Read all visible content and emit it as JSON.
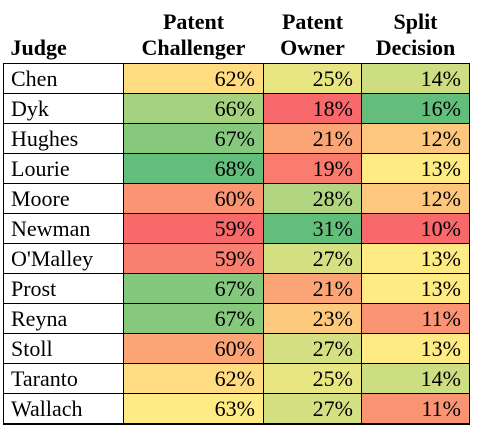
{
  "chart_data": {
    "type": "table",
    "columns": [
      "Judge",
      "Patent Challenger",
      "Patent Owner",
      "Split Decision"
    ],
    "column_lines": [
      [
        "Judge"
      ],
      [
        "Patent",
        "Challenger"
      ],
      [
        "Patent",
        "Owner"
      ],
      [
        "Split",
        "Decision"
      ]
    ],
    "rows": [
      {
        "judge": "Chen",
        "challenger": "62%",
        "owner": "25%",
        "split": "14%"
      },
      {
        "judge": "Dyk",
        "challenger": "66%",
        "owner": "18%",
        "split": "16%"
      },
      {
        "judge": "Hughes",
        "challenger": "67%",
        "owner": "21%",
        "split": "12%"
      },
      {
        "judge": "Lourie",
        "challenger": "68%",
        "owner": "19%",
        "split": "13%"
      },
      {
        "judge": "Moore",
        "challenger": "60%",
        "owner": "28%",
        "split": "12%"
      },
      {
        "judge": "Newman",
        "challenger": "59%",
        "owner": "31%",
        "split": "10%"
      },
      {
        "judge": "O'Malley",
        "challenger": "59%",
        "owner": "27%",
        "split": "13%"
      },
      {
        "judge": "Prost",
        "challenger": "67%",
        "owner": "21%",
        "split": "13%"
      },
      {
        "judge": "Reyna",
        "challenger": "67%",
        "owner": "23%",
        "split": "11%"
      },
      {
        "judge": "Stoll",
        "challenger": "60%",
        "owner": "27%",
        "split": "13%"
      },
      {
        "judge": "Taranto",
        "challenger": "62%",
        "owner": "25%",
        "split": "14%"
      },
      {
        "judge": "Wallach",
        "challenger": "63%",
        "owner": "27%",
        "split": "11%"
      }
    ],
    "cell_colors": {
      "challenger": [
        "#FFDC80",
        "#A4D27E",
        "#86C97D",
        "#63BE7B",
        "#FA9473",
        "#F8696B",
        "#F98070",
        "#84C87D",
        "#86C97D",
        "#FBA576",
        "#FFDB81",
        "#FFEB84"
      ],
      "owner": [
        "#E8E583",
        "#F8696B",
        "#FBA576",
        "#F97C6F",
        "#B1D580",
        "#63BE7B",
        "#D4E082",
        "#FBA576",
        "#FDC97D",
        "#D4E082",
        "#E8E583",
        "#D4E082"
      ],
      "split": [
        "#CDDD82",
        "#63BE7B",
        "#FDC87D",
        "#FFEB84",
        "#FDC87D",
        "#F8696B",
        "#FFEB84",
        "#FFEB84",
        "#FB9473",
        "#FFEB84",
        "#CDDD82",
        "#FB9473"
      ]
    }
  }
}
